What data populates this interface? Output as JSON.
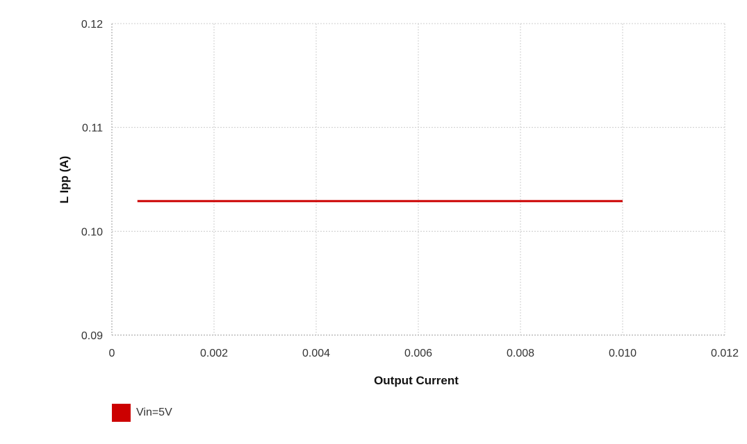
{
  "chart_data": {
    "type": "line",
    "title": "",
    "xlabel": "Output Current",
    "ylabel": "L Ipp (A)",
    "xlim": [
      0,
      0.012
    ],
    "ylim": [
      0.09,
      0.12
    ],
    "xticks": [
      0,
      0.002,
      0.004,
      0.006,
      0.008,
      0.01,
      0.012
    ],
    "xtick_labels": [
      "0",
      "0.002",
      "0.004",
      "0.006",
      "0.008",
      "0.010",
      "0.012"
    ],
    "yticks": [
      0.09,
      0.1,
      0.11,
      0.12
    ],
    "ytick_labels": [
      "0.09",
      "0.10",
      "0.11",
      "0.12"
    ],
    "grid": true,
    "legend_position": "bottom-left",
    "series": [
      {
        "name": "Vin=5V",
        "color": "#cc0000",
        "x": [
          0.0005,
          0.001,
          0.002,
          0.003,
          0.004,
          0.005,
          0.006,
          0.007,
          0.008,
          0.009,
          0.0095,
          0.01
        ],
        "y": [
          0.1029,
          0.1029,
          0.1029,
          0.1029,
          0.1029,
          0.1029,
          0.1029,
          0.1029,
          0.1029,
          0.1029,
          0.1029,
          0.1029
        ]
      }
    ]
  }
}
